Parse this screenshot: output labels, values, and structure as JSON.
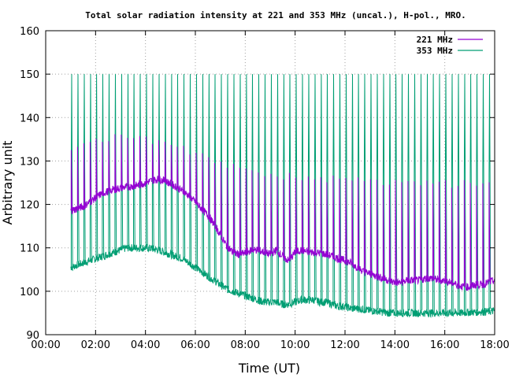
{
  "chart_data": {
    "type": "line",
    "title": "Total solar radiation intensity at 221 and 353 MHz (uncal.), H-pol., MRO.",
    "xlabel": "Time (UT)",
    "ylabel": "Arbitrary unit",
    "xlim_hours": [
      0,
      18
    ],
    "ylim": [
      90,
      160
    ],
    "x_ticks": [
      "00:00",
      "02:00",
      "04:00",
      "06:00",
      "08:00",
      "10:00",
      "12:00",
      "14:00",
      "16:00",
      "18:00"
    ],
    "y_ticks": [
      90,
      100,
      110,
      120,
      130,
      140,
      150,
      160
    ],
    "grid": true,
    "legend": "top-right",
    "calibration_spike_interval_hours": 0.25,
    "series": [
      {
        "name": "221 MHz",
        "color": "#9400d3",
        "spike_peaks": [
          134,
          136,
          137,
          136,
          134,
          133,
          131,
          129,
          128,
          127.5,
          127,
          126.5,
          126,
          126,
          125.5
        ],
        "spike_peak_hours": [
          1,
          2,
          3,
          4,
          5,
          6,
          7,
          8,
          9,
          10,
          11,
          12,
          13,
          14,
          18
        ],
        "x_hours": [
          1.0,
          1.25,
          1.5,
          1.75,
          2.0,
          2.25,
          2.5,
          2.75,
          3.0,
          3.25,
          3.5,
          3.75,
          4.0,
          4.25,
          4.5,
          4.75,
          5.0,
          5.25,
          5.5,
          5.75,
          6.0,
          6.25,
          6.5,
          6.75,
          7.0,
          7.25,
          7.5,
          7.75,
          8.0,
          8.25,
          8.5,
          8.75,
          9.0,
          9.25,
          9.5,
          9.75,
          10.0,
          10.25,
          10.5,
          10.75,
          11.0,
          11.25,
          11.5,
          11.75,
          12.0,
          12.25,
          12.5,
          12.75,
          13.0,
          13.25,
          13.5,
          13.75,
          14.0,
          14.25,
          14.5,
          14.75,
          15.0,
          15.25,
          15.5,
          15.75,
          16.0,
          16.25,
          16.5,
          16.75,
          17.0,
          17.25,
          17.5,
          17.75,
          18.0
        ],
        "values": [
          118.5,
          119,
          119.5,
          120.5,
          121.5,
          122.5,
          123,
          123.5,
          123.8,
          124,
          124.2,
          124.5,
          125,
          125.5,
          125.8,
          125.5,
          124.8,
          124,
          123,
          122,
          120.5,
          119,
          117.5,
          115.5,
          113,
          110.5,
          109,
          108.5,
          108.8,
          109.5,
          109.5,
          109,
          108.5,
          109.5,
          108,
          107,
          109,
          109.5,
          109,
          109,
          108.8,
          108.5,
          108,
          107.5,
          107,
          106.5,
          105.5,
          104.5,
          104,
          103.5,
          103,
          102.5,
          102,
          102,
          102.5,
          102.5,
          102.5,
          103,
          103,
          102.5,
          102.5,
          102,
          101.5,
          101,
          101,
          101.5,
          101.5,
          102,
          102.5
        ]
      },
      {
        "name": "353 MHz",
        "color": "#009e73",
        "spike_peak": 150,
        "secondary_spike_peak": 127,
        "x_hours": [
          1.0,
          1.25,
          1.5,
          1.75,
          2.0,
          2.25,
          2.5,
          2.75,
          3.0,
          3.25,
          3.5,
          3.75,
          4.0,
          4.25,
          4.5,
          4.75,
          5.0,
          5.25,
          5.5,
          5.75,
          6.0,
          6.25,
          6.5,
          6.75,
          7.0,
          7.25,
          7.5,
          7.75,
          8.0,
          8.25,
          8.5,
          8.75,
          9.0,
          9.25,
          9.5,
          9.75,
          10.0,
          10.25,
          10.5,
          10.75,
          11.0,
          11.25,
          11.5,
          11.75,
          12.0,
          12.25,
          12.5,
          12.75,
          13.0,
          13.25,
          13.5,
          13.75,
          14.0,
          14.25,
          14.5,
          14.75,
          15.0,
          15.25,
          15.5,
          15.75,
          16.0,
          16.25,
          16.5,
          16.75,
          17.0,
          17.25,
          17.5,
          17.75,
          18.0
        ],
        "values": [
          105.5,
          106,
          106.5,
          107,
          107.5,
          108,
          108.5,
          109,
          109.5,
          110,
          110,
          110,
          110,
          109.8,
          109.5,
          109,
          108.5,
          108,
          107.5,
          106.5,
          105.5,
          104.5,
          103.5,
          102.5,
          101.5,
          100.5,
          100,
          99.5,
          99,
          98.5,
          98,
          97.5,
          97.5,
          97.5,
          97,
          97,
          97.5,
          98,
          98,
          98,
          97.5,
          97.5,
          97,
          96.5,
          96.5,
          96,
          96,
          95.8,
          95.5,
          95.5,
          95.2,
          95,
          95,
          95,
          95,
          95,
          95,
          95,
          95,
          95,
          95,
          95,
          95,
          95,
          95.2,
          95.2,
          95.3,
          95.3,
          95.5
        ]
      }
    ]
  }
}
